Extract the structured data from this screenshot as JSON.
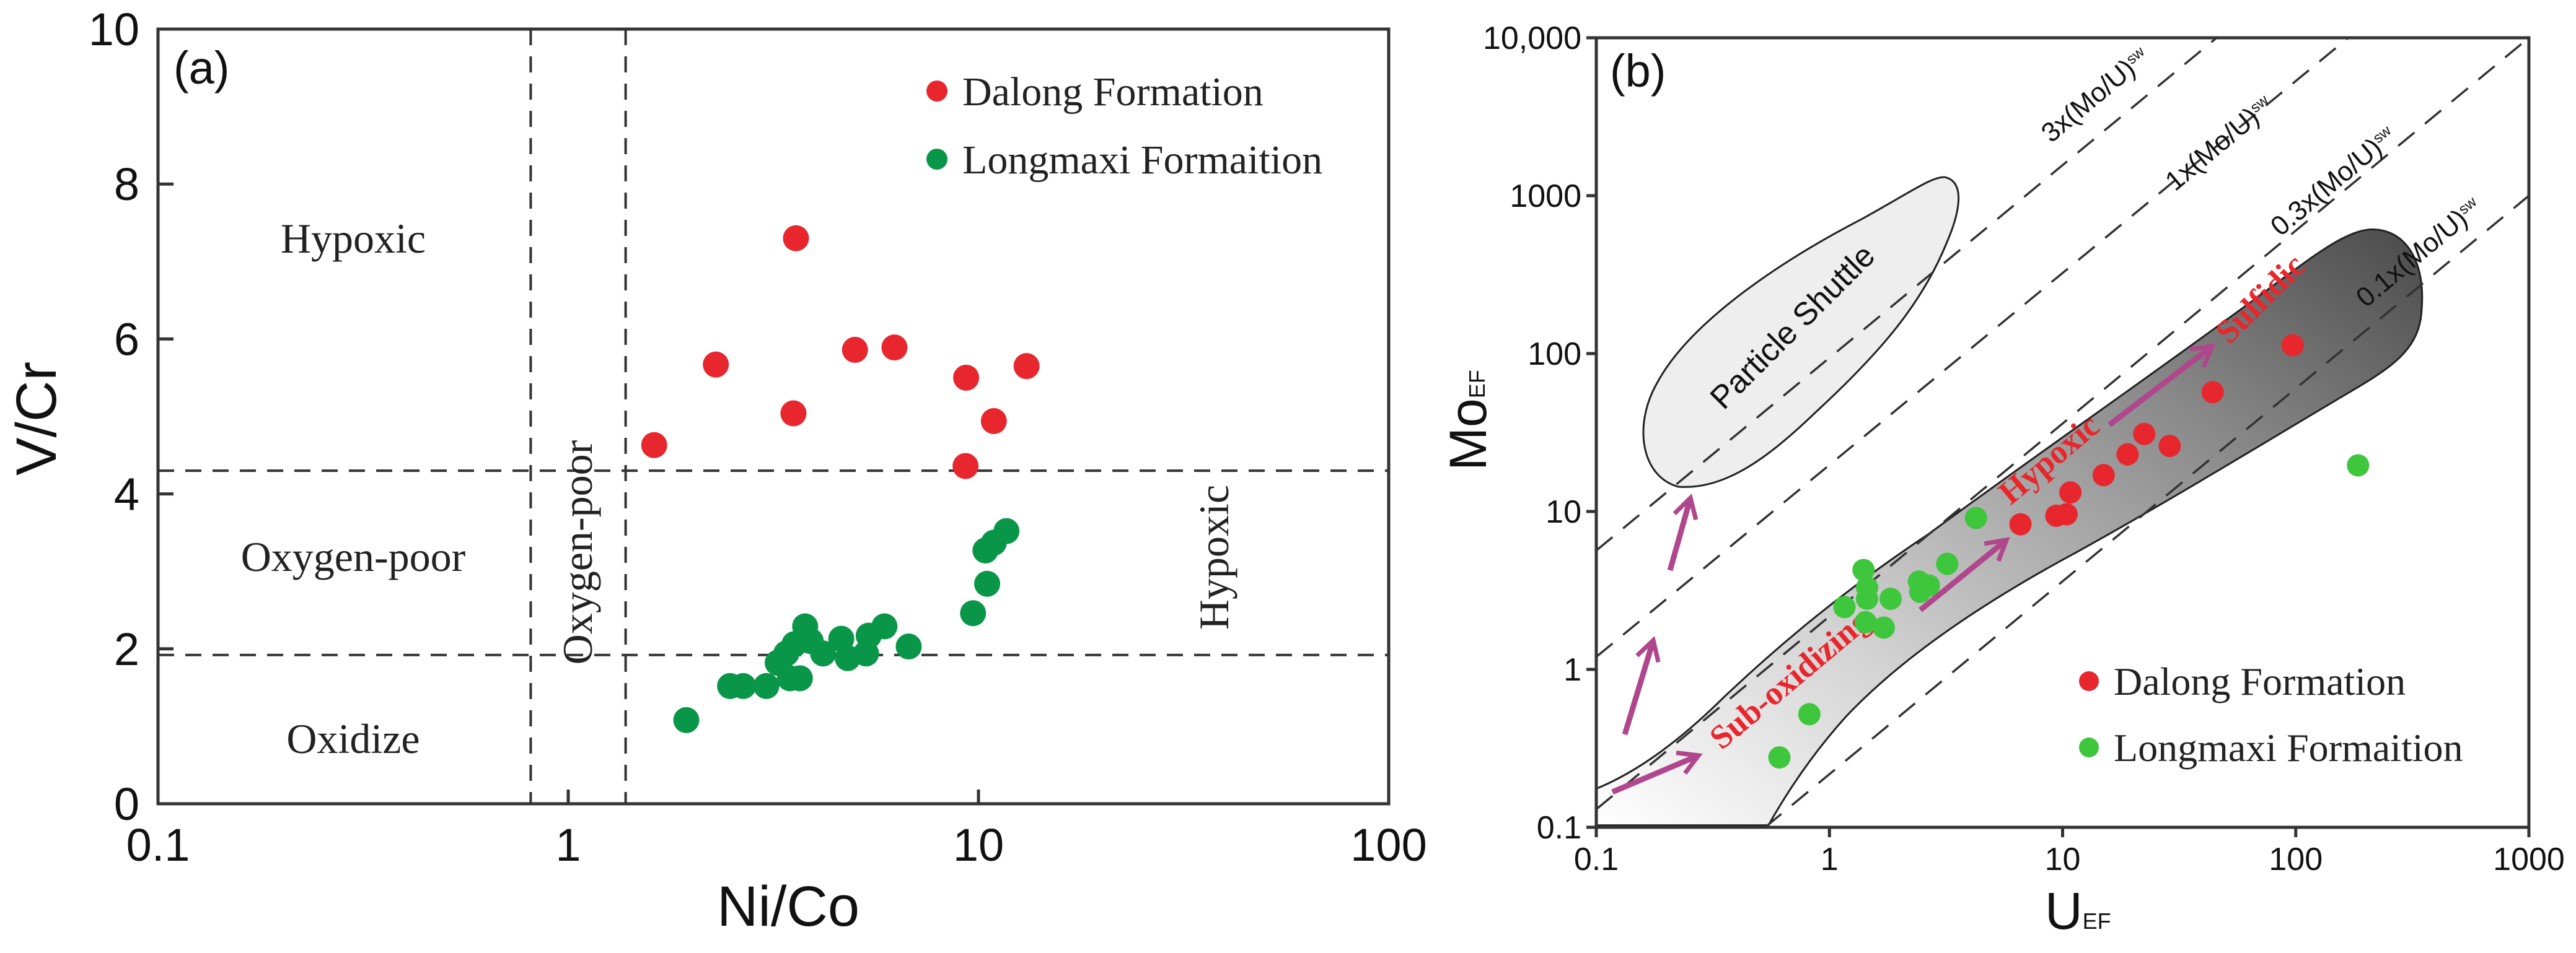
{
  "colors": {
    "dalong": "#e8262d",
    "longmaxi_a": "#0a9648",
    "longmaxi_b": "#3ec63c",
    "arrow": "#b0468c",
    "field_dark": "#4a4a4a",
    "shuttle_fill": "#eeeeee"
  },
  "chart_data": [
    {
      "type": "scatter",
      "panel_label": "(a)",
      "xlabel": "Ni/Co",
      "ylabel": "V/Cr",
      "xscale": "log",
      "xlim": [
        0.1,
        100
      ],
      "ylim": [
        0,
        10
      ],
      "xticks": [
        "0.1",
        "1",
        "10",
        "100"
      ],
      "xtick_values": [
        0.1,
        1,
        10,
        100
      ],
      "yticks": [
        "0",
        "2",
        "4",
        "6",
        "8",
        "10"
      ],
      "ytick_values": [
        0,
        2,
        4,
        6,
        8,
        10
      ],
      "legend_position": "top-right",
      "thresholds": {
        "x": [
          0.81,
          1.38
        ],
        "y": [
          4.3,
          1.92
        ]
      },
      "region_labels": [
        "Hypoxic",
        "Oxygen-poor",
        "Oxidize",
        "Oxygen-poor",
        "Hypoxic"
      ],
      "series": [
        {
          "name": "Dalong Formation",
          "color_key": "dalong",
          "points": [
            [
              1.62,
              4.63
            ],
            [
              2.29,
              5.67
            ],
            [
              3.59,
              7.3
            ],
            [
              3.54,
              5.04
            ],
            [
              5.0,
              5.86
            ],
            [
              6.24,
              5.89
            ],
            [
              9.33,
              5.5
            ],
            [
              9.3,
              4.36
            ],
            [
              10.9,
              4.94
            ],
            [
              13.1,
              5.65
            ]
          ]
        },
        {
          "name": "Longmaxi Formaition",
          "color_key": "longmaxi_a",
          "points": [
            [
              1.94,
              1.08
            ],
            [
              2.48,
              1.52
            ],
            [
              2.67,
              1.52
            ],
            [
              3.04,
              1.52
            ],
            [
              3.24,
              1.82
            ],
            [
              3.4,
              1.94
            ],
            [
              3.47,
              1.62
            ],
            [
              3.67,
              1.62
            ],
            [
              3.56,
              2.06
            ],
            [
              3.78,
              2.29
            ],
            [
              3.9,
              2.1
            ],
            [
              4.18,
              1.94
            ],
            [
              4.63,
              2.13
            ],
            [
              4.8,
              1.88
            ],
            [
              5.32,
              1.94
            ],
            [
              5.4,
              2.17
            ],
            [
              5.9,
              2.29
            ],
            [
              6.76,
              2.03
            ],
            [
              9.7,
              2.46
            ],
            [
              10.5,
              2.84
            ],
            [
              10.4,
              3.27
            ],
            [
              10.9,
              3.37
            ],
            [
              11.7,
              3.52
            ]
          ]
        }
      ]
    },
    {
      "type": "scatter",
      "panel_label": "(b)",
      "xlabel": "U",
      "xlabel_sub": "EF",
      "ylabel": "Mo",
      "ylabel_sub": "EF",
      "xscale": "log",
      "yscale": "log",
      "xlim": [
        0.1,
        1000
      ],
      "ylim": [
        0.1,
        10000
      ],
      "xticks": [
        "0.1",
        "1",
        "10",
        "100",
        "1000"
      ],
      "xtick_values": [
        0.1,
        1,
        10,
        100,
        1000
      ],
      "yticks": [
        "0.1",
        "1",
        "10",
        "100",
        "1000",
        "10,000"
      ],
      "ytick_values": [
        0.1,
        1,
        10,
        100,
        1000,
        10000
      ],
      "legend_position": "bottom-right",
      "reference_lines": [
        {
          "label": "3x(Mo/U)",
          "sub": "sw",
          "from": [
            0.1,
            5.66
          ],
          "to": [
            45.8,
            10000
          ]
        },
        {
          "label": "1x(Mo/U)",
          "sub": "sw",
          "from": [
            0.1,
            1.2
          ],
          "to": [
            168,
            10000
          ]
        },
        {
          "label": "0.3x(Mo/U)",
          "sub": "sw",
          "from": [
            0.1,
            0.13
          ],
          "to": [
            1000,
            10000
          ]
        },
        {
          "label": "0.1x(Mo/U)",
          "sub": "sw",
          "from": [
            0.53,
            0.1
          ],
          "to": [
            1000,
            1000
          ]
        }
      ],
      "region_labels": {
        "shuttle": "Particle Shuttle",
        "sub_oxidizing": "Sub-oxidizing",
        "hypoxic": "Hypoxic",
        "sulfidic": "Sulfidic"
      },
      "series": [
        {
          "name": "Dalong Formation",
          "color_key": "dalong",
          "points": [
            [
              6.6,
              8.3
            ],
            [
              9.4,
              9.4
            ],
            [
              10.4,
              9.6
            ],
            [
              10.8,
              13.2
            ],
            [
              15,
              17
            ],
            [
              19,
              23
            ],
            [
              22.4,
              31
            ],
            [
              28.8,
              26
            ],
            [
              44,
              57
            ],
            [
              97,
              113
            ]
          ]
        },
        {
          "name": "Longmaxi Formaition",
          "color_key": "longmaxi_b",
          "points": [
            [
              0.61,
              0.277
            ],
            [
              0.82,
              0.52
            ],
            [
              1.16,
              2.48
            ],
            [
              1.4,
              4.26
            ],
            [
              1.45,
              3.3
            ],
            [
              1.45,
              2.8
            ],
            [
              1.43,
              1.99
            ],
            [
              1.71,
              1.84
            ],
            [
              1.83,
              2.8
            ],
            [
              2.42,
              3.6
            ],
            [
              2.67,
              3.4
            ],
            [
              2.45,
              3.1
            ],
            [
              3.2,
              4.66
            ],
            [
              4.25,
              9.1
            ],
            [
              185,
              19.6
            ]
          ]
        }
      ]
    }
  ]
}
